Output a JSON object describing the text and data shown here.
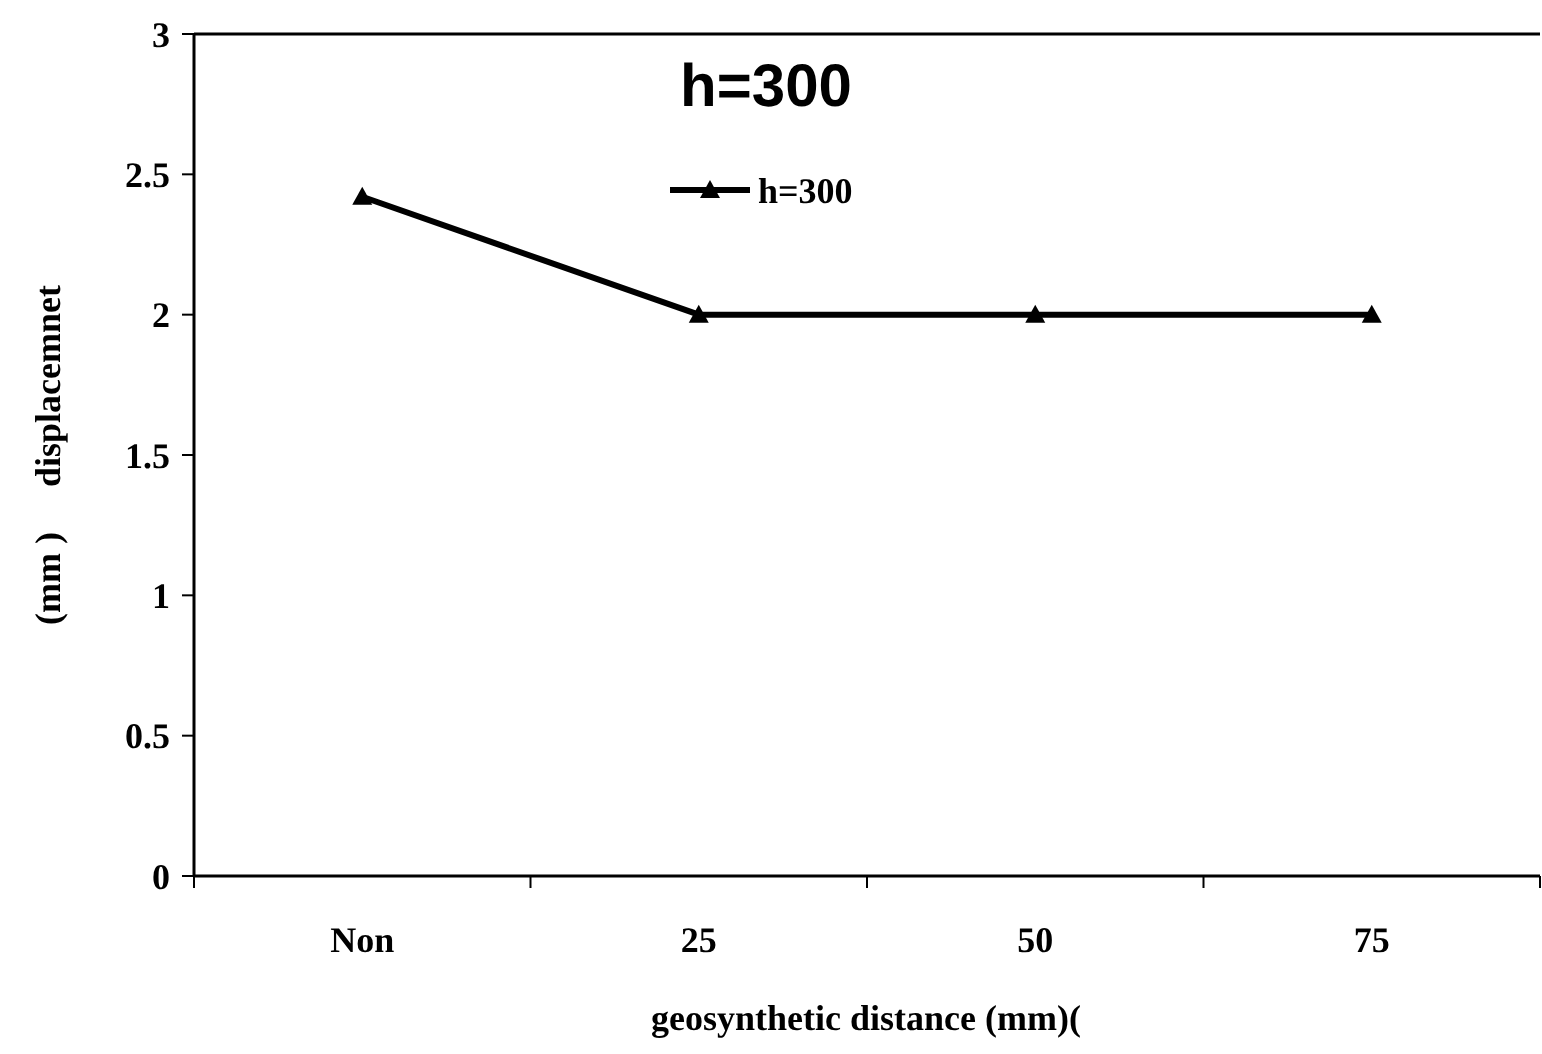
{
  "chart_data": {
    "type": "line",
    "title": "h=300",
    "xlabel": "geosynthetic distance (mm)(",
    "ylabel": "(mm )     displacemnet",
    "categories": [
      "Non",
      "25",
      "50",
      "75"
    ],
    "series": [
      {
        "name": "h=300",
        "color": "#000000",
        "values": [
          2.42,
          2,
          2,
          2
        ]
      }
    ],
    "ylim": [
      0,
      3
    ],
    "yticks": [
      0,
      0.5,
      1,
      1.5,
      2,
      2.5,
      3
    ],
    "grid": false,
    "legend": "top",
    "marker": "triangle",
    "line_style": "solid"
  }
}
